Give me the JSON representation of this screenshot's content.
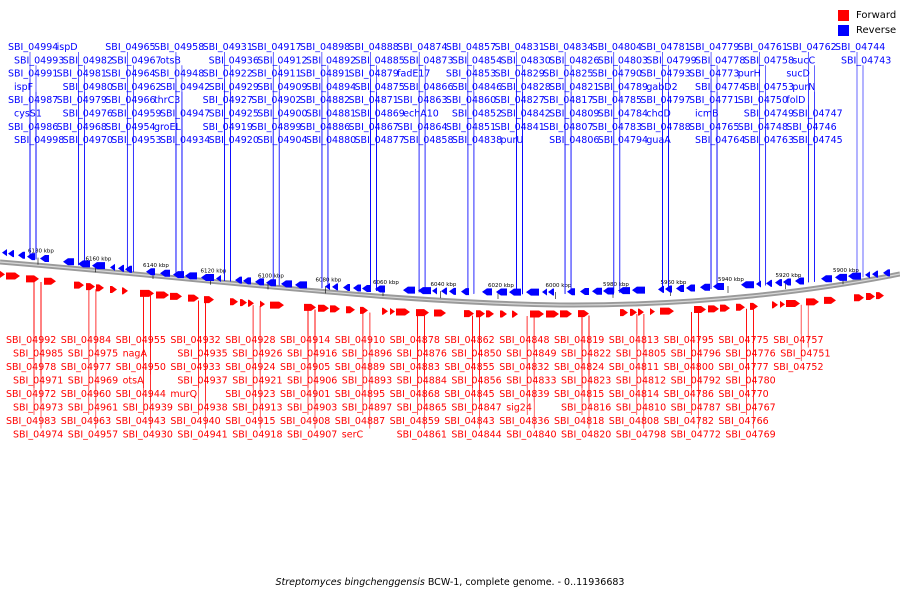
{
  "legend": {
    "forward_label": "Forward",
    "forward_color": "#ff0000",
    "reverse_label": "Reverse",
    "reverse_color": "#0000ff"
  },
  "caption": {
    "organism": "Streptomyces bingchenggensis",
    "rest": " BCW-1, complete genome. - 0..11936683"
  },
  "axis": {
    "unit": "kbp",
    "ticks": [
      "6180 kbp",
      "6160 kbp",
      "6140 kbp",
      "6120 kbp",
      "6100 kbp",
      "6080 kbp",
      "6060 kbp",
      "6040 kbp",
      "6020 kbp",
      "6000 kbp",
      "5980 kbp",
      "5960 kbp",
      "5940 kbp",
      "5920 kbp",
      "5900 kbp"
    ]
  },
  "reverse_labels": [
    "SBI_04994",
    "SBI_04993",
    "SBI_04991",
    "ispF",
    "SBI_04987",
    "cysS1",
    "SBI_04986",
    "SBI_04998",
    "ispD",
    "SBI_04982",
    "SBI_04981",
    "SBI_04980",
    "SBI_04979",
    "SBI_04976",
    "SBI_04968",
    "SBI_04970",
    "SBI_04965",
    "SBI_04967",
    "SBI_04964",
    "SBI_04962",
    "SBI_04966",
    "SBI_04959",
    "SBI_04954",
    "SBI_04953",
    "SBI_04958",
    "otsB",
    "SBI_04948",
    "SBI_04942",
    "thrC3",
    "SBI_04947",
    "groEL",
    "SBI_04934",
    "SBI_04931",
    "SBI_04936",
    "SBI_04922",
    "SBI_04929",
    "SBI_04927",
    "SBI_04925",
    "SBI_04919",
    "SBI_04920",
    "SBI_04917",
    "SBI_04912",
    "SBI_04911",
    "SBI_04909",
    "SBI_04902",
    "SBI_04900",
    "SBI_04899",
    "SBI_04904",
    "SBI_04898",
    "SBI_04892",
    "SBI_04891",
    "SBI_04894",
    "SBI_04882",
    "SBI_04881",
    "SBI_04886",
    "SBI_04880",
    "SBI_04888",
    "SBI_04885",
    "SBI_04879",
    "SBI_04875",
    "SBI_04871",
    "SBI_04869",
    "SBI_04867",
    "SBI_04877",
    "SBI_04874",
    "SBI_04873",
    "fadE17",
    "SBI_04866",
    "SBI_04863",
    "echA10",
    "SBI_04864",
    "SBI_04858",
    "SBI_04857",
    "SBI_04854",
    "SBI_04853",
    "SBI_04846",
    "SBI_04860",
    "SBI_04852",
    "SBI_04851",
    "SBI_04838",
    "SBI_04831",
    "SBI_04830",
    "SBI_04829",
    "SBI_04828",
    "SBI_04827",
    "SBI_04842",
    "SBI_04841",
    "purU",
    "SBI_04834",
    "SBI_04826",
    "SBI_04825",
    "SBI_04821",
    "SBI_04817",
    "SBI_04809",
    "SBI_04807",
    "SBI_04806",
    "SBI_04804",
    "SBI_04803",
    "SBI_04790",
    "SBI_04789",
    "SBI_04785",
    "SBI_04784",
    "SBI_04783",
    "SBI_04794",
    "SBI_04781",
    "SBI_04799",
    "SBI_04793",
    "gabD2",
    "SBI_04797",
    "choD",
    "SBI_04788",
    "guaA",
    "SBI_04779",
    "SBI_04778",
    "SBI_04773",
    "SBI_04774",
    "SBI_04771",
    "icmB",
    "SBI_04765",
    "SBI_04764",
    "SBI_04761",
    "SBI_04758",
    "purH",
    "SBI_04753",
    "SBI_04750",
    "SBI_04749",
    "SBI_04748",
    "SBI_04763",
    "SBI_04762",
    "sucC",
    "sucD",
    "purN",
    "folD",
    "SBI_04747",
    "SBI_04746",
    "SBI_04745",
    "SBI_04744",
    "SBI_04743"
  ],
  "forward_labels": [
    "SBI_04992",
    "SBI_04985",
    "SBI_04978",
    "SBI_04971",
    "SBI_04972",
    "SBI_04973",
    "SBI_04983",
    "SBI_04974",
    "SBI_04984",
    "SBI_04975",
    "SBI_04977",
    "SBI_04969",
    "SBI_04960",
    "SBI_04961",
    "SBI_04963",
    "SBI_04957",
    "SBI_04955",
    "nagA",
    "SBI_04950",
    "otsA",
    "SBI_04944",
    "SBI_04939",
    "SBI_04943",
    "SBI_04930",
    "SBI_04932",
    "SBI_04935",
    "SBI_04933",
    "SBI_04937",
    "murQ",
    "SBI_04938",
    "SBI_04940",
    "SBI_04941",
    "SBI_04928",
    "SBI_04926",
    "SBI_04924",
    "SBI_04921",
    "SBI_04923",
    "SBI_04913",
    "SBI_04915",
    "SBI_04918",
    "SBI_04914",
    "SBI_04916",
    "SBI_04905",
    "SBI_04906",
    "SBI_04901",
    "SBI_04903",
    "SBI_04908",
    "SBI_04907",
    "SBI_04910",
    "SBI_04896",
    "SBI_04889",
    "SBI_04893",
    "SBI_04895",
    "SBI_04897",
    "SBI_04887",
    "serC",
    "SBI_04878",
    "SBI_04876",
    "SBI_04883",
    "SBI_04884",
    "SBI_04868",
    "SBI_04865",
    "SBI_04859",
    "SBI_04861",
    "SBI_04862",
    "SBI_04850",
    "SBI_04855",
    "SBI_04856",
    "SBI_04845",
    "SBI_04847",
    "SBI_04843",
    "SBI_04844",
    "SBI_04848",
    "SBI_04849",
    "SBI_04832",
    "SBI_04833",
    "SBI_04839",
    "sig24",
    "SBI_04836",
    "SBI_04840",
    "SBI_04819",
    "SBI_04822",
    "SBI_04824",
    "SBI_04823",
    "SBI_04815",
    "SBI_04816",
    "SBI_04818",
    "SBI_04820",
    "SBI_04813",
    "SBI_04805",
    "SBI_04811",
    "SBI_04812",
    "SBI_04814",
    "SBI_04810",
    "SBI_04808",
    "SBI_04798",
    "SBI_04795",
    "SBI_04796",
    "SBI_04800",
    "SBI_04792",
    "SBI_04786",
    "SBI_04787",
    "SBI_04782",
    "SBI_04772",
    "SBI_04775",
    "SBI_04776",
    "SBI_04777",
    "SBI_04780",
    "SBI_04770",
    "SBI_04767",
    "SBI_04766",
    "SBI_04769",
    "SBI_04757",
    "SBI_04751",
    "SBI_04752"
  ]
}
